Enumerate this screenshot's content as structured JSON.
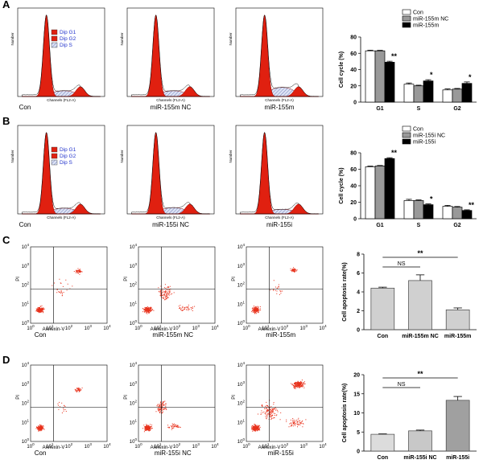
{
  "panel_letters": [
    "A",
    "B",
    "C",
    "D"
  ],
  "histograms": {
    "x_label": "Channels (FL2-A)",
    "y_label": "Number",
    "legend": [
      "Dip G1",
      "Dip G2",
      "Dip S"
    ],
    "captions": [
      [
        "Con",
        "miR-155m NC",
        "miR-155m"
      ],
      [
        "Con",
        "miR-155i NC",
        "miR-155i"
      ]
    ]
  },
  "dotplots": {
    "x_label": "Annexin-V",
    "y_label": "PI",
    "tick_base": "10",
    "tick_exponents": [
      "0",
      "1",
      "2",
      "3",
      "4"
    ],
    "captions": [
      [
        "Con",
        "miR-155m NC",
        "miR-155m"
      ],
      [
        "Con",
        "miR-155i NC",
        "miR-155i"
      ]
    ]
  },
  "chart_data": [
    {
      "type": "bar",
      "y_label": "Cell cycle (%)",
      "categories": [
        "G1",
        "S",
        "G2"
      ],
      "series": [
        {
          "name": "Con",
          "color": "#ffffff",
          "values": [
            63,
            22,
            15
          ],
          "errors": [
            0.8,
            1.5,
            1.2
          ]
        },
        {
          "name": "miR-155m NC",
          "color": "#999999",
          "values": [
            63,
            20,
            16
          ],
          "errors": [
            0.6,
            0.8,
            0.8
          ]
        },
        {
          "name": "miR-155m",
          "color": "#000000",
          "values": [
            49,
            26,
            23
          ],
          "errors": [
            1.2,
            1.5,
            1.8
          ]
        }
      ],
      "significance": [
        "**",
        "*",
        "*"
      ],
      "ylim": [
        0,
        80
      ],
      "yticks": [
        0,
        20,
        40,
        60,
        80
      ]
    },
    {
      "type": "bar",
      "y_label": "Cell cycle (%)",
      "categories": [
        "G1",
        "S",
        "G2"
      ],
      "series": [
        {
          "name": "Con",
          "color": "#ffffff",
          "values": [
            63,
            22,
            15
          ],
          "errors": [
            0.8,
            1.5,
            1.2
          ]
        },
        {
          "name": "miR-155i NC",
          "color": "#999999",
          "values": [
            64,
            22,
            14
          ],
          "errors": [
            0.6,
            0.8,
            0.8
          ]
        },
        {
          "name": "miR-155i",
          "color": "#000000",
          "values": [
            73,
            17,
            10
          ],
          "errors": [
            1.0,
            1.0,
            0.8
          ]
        }
      ],
      "significance": [
        "**",
        "*",
        "**"
      ],
      "ylim": [
        0,
        80
      ],
      "yticks": [
        0,
        20,
        40,
        60,
        80
      ]
    },
    {
      "type": "bar",
      "y_label": "Cell apoptosis rate(%)",
      "categories": [
        "Con",
        "miR-155m NC",
        "miR-155m"
      ],
      "values": [
        4.4,
        5.2,
        2.1
      ],
      "errors": [
        0.1,
        0.6,
        0.2
      ],
      "colors": [
        "#d0d0d0",
        "#d0d0d0",
        "#d0d0d0"
      ],
      "comparisons": [
        {
          "label": "NS",
          "from": "Con",
          "to": "miR-155m NC"
        },
        {
          "label": "**",
          "from": "Con",
          "to": "miR-155m"
        }
      ],
      "ylim": [
        0,
        8
      ],
      "yticks": [
        0,
        2,
        4,
        6,
        8
      ]
    },
    {
      "type": "bar",
      "y_label": "Cell apoptosis rate(%)",
      "categories": [
        "Con",
        "miR-155i NC",
        "miR-155i"
      ],
      "values": [
        4.4,
        5.3,
        13.3
      ],
      "errors": [
        0.1,
        0.2,
        1.0
      ],
      "colors": [
        "#dcdcdc",
        "#c8c8c8",
        "#a0a0a0"
      ],
      "comparisons": [
        {
          "label": "NS",
          "from": "Con",
          "to": "miR-155i NC"
        },
        {
          "label": "**",
          "from": "Con",
          "to": "miR-155i"
        }
      ],
      "ylim": [
        0,
        20
      ],
      "yticks": [
        0,
        5,
        10,
        15,
        20
      ]
    }
  ]
}
